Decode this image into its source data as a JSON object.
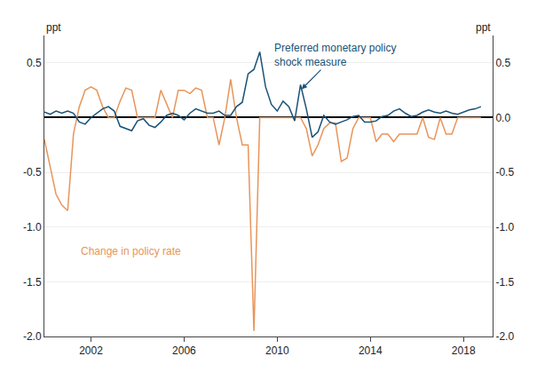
{
  "chart_data": {
    "type": "line",
    "ylabel": "ppt",
    "y2label": "ppt",
    "x": [
      2000.0,
      2000.25,
      2000.5,
      2000.75,
      2001.0,
      2001.25,
      2001.5,
      2001.75,
      2002.0,
      2002.25,
      2002.5,
      2002.75,
      2003.0,
      2003.25,
      2003.5,
      2003.75,
      2004.0,
      2004.25,
      2004.5,
      2004.75,
      2005.0,
      2005.25,
      2005.5,
      2005.75,
      2006.0,
      2006.25,
      2006.5,
      2006.75,
      2007.0,
      2007.25,
      2007.5,
      2007.75,
      2008.0,
      2008.25,
      2008.5,
      2008.75,
      2009.0,
      2009.25,
      2009.5,
      2009.75,
      2010.0,
      2010.25,
      2010.5,
      2010.75,
      2011.0,
      2011.25,
      2011.5,
      2011.75,
      2012.0,
      2012.25,
      2012.5,
      2012.75,
      2013.0,
      2013.25,
      2013.5,
      2013.75,
      2014.0,
      2014.25,
      2014.5,
      2014.75,
      2015.0,
      2015.25,
      2015.5,
      2015.75,
      2016.0,
      2016.25,
      2016.5,
      2016.75,
      2017.0,
      2017.25,
      2017.5,
      2017.75,
      2018.0,
      2018.25,
      2018.5,
      2018.75
    ],
    "series": [
      {
        "color": "#e8955a",
        "values": [
          -0.2,
          -0.45,
          -0.7,
          -0.8,
          -0.85,
          -0.15,
          0.1,
          0.25,
          0.28,
          0.25,
          0.1,
          0.0,
          0.0,
          0.15,
          0.27,
          0.25,
          0.0,
          0.0,
          0.0,
          0.0,
          0.25,
          0.12,
          0.0,
          0.25,
          0.25,
          0.22,
          0.27,
          0.25,
          0.0,
          0.0,
          -0.25,
          0.0,
          0.35,
          0.0,
          -0.25,
          -0.25,
          -1.95,
          0.0,
          0.0,
          0.0,
          0.0,
          0.0,
          0.0,
          0.0,
          0.0,
          -0.1,
          -0.35,
          -0.25,
          -0.1,
          -0.05,
          -0.05,
          -0.4,
          -0.37,
          -0.1,
          0.0,
          0.0,
          0.0,
          -0.22,
          -0.15,
          -0.15,
          -0.22,
          -0.15,
          -0.15,
          -0.15,
          -0.15,
          0.0,
          -0.18,
          -0.2,
          0.0,
          -0.15,
          -0.15,
          0.0,
          0.0,
          0.0,
          0.0,
          0.0
        ]
      },
      {
        "color": "#1a5276",
        "values": [
          0.05,
          0.03,
          0.06,
          0.04,
          0.06,
          0.04,
          -0.04,
          -0.06,
          0.0,
          0.04,
          0.08,
          0.1,
          0.06,
          -0.08,
          -0.1,
          -0.12,
          -0.03,
          -0.01,
          -0.07,
          -0.09,
          -0.04,
          0.02,
          0.04,
          0.02,
          -0.02,
          0.04,
          0.08,
          0.06,
          0.04,
          0.04,
          0.06,
          0.02,
          0.02,
          0.1,
          0.14,
          0.4,
          0.44,
          0.6,
          0.28,
          0.12,
          0.06,
          0.15,
          0.1,
          -0.03,
          0.3,
          0.08,
          -0.18,
          -0.13,
          0.02,
          -0.04,
          -0.06,
          -0.04,
          -0.02,
          0.01,
          0.02,
          -0.04,
          -0.04,
          -0.03,
          0.01,
          0.02,
          0.06,
          0.08,
          0.04,
          0.01,
          0.02,
          0.05,
          0.07,
          0.05,
          0.04,
          0.06,
          0.04,
          0.03,
          0.05,
          0.07,
          0.08,
          0.1
        ]
      }
    ],
    "xlim": [
      2000.0,
      2019.25
    ],
    "xticks": [
      2002,
      2006,
      2010,
      2014,
      2018
    ],
    "ylim": [
      -2.0,
      0.75
    ],
    "yticks": [
      {
        "value": -2.0,
        "label": "-2.0"
      },
      {
        "value": -1.5,
        "label": "-1.5"
      },
      {
        "value": -1.0,
        "label": "-1.0"
      },
      {
        "value": -0.5,
        "label": "-0.5"
      },
      {
        "value": 0.0,
        "label": null
      },
      {
        "value": 0.5,
        "label": "0.5"
      }
    ],
    "y2lim": [
      -2.0,
      0.75
    ],
    "y2ticks": [
      {
        "value": -2.0,
        "label": "-2.0"
      },
      {
        "value": -1.5,
        "label": "-1.5"
      },
      {
        "value": -1.0,
        "label": "-1.0"
      },
      {
        "value": -0.5,
        "label": "-0.5"
      },
      {
        "value": 0.0,
        "label": "0.0"
      },
      {
        "value": 0.5,
        "label": "0.5"
      }
    ],
    "grid": true,
    "annotations": [
      {
        "text": "Preferred monetary policy\nshock measure",
        "x": 2012.5,
        "y": 0.57,
        "arrow_x": 2011.05,
        "arrow_y": 0.26,
        "color": "#1a5276"
      },
      {
        "text": "Change in policy rate",
        "x": 2001.5,
        "y": -1.15,
        "color": "#e8955a"
      }
    ]
  }
}
